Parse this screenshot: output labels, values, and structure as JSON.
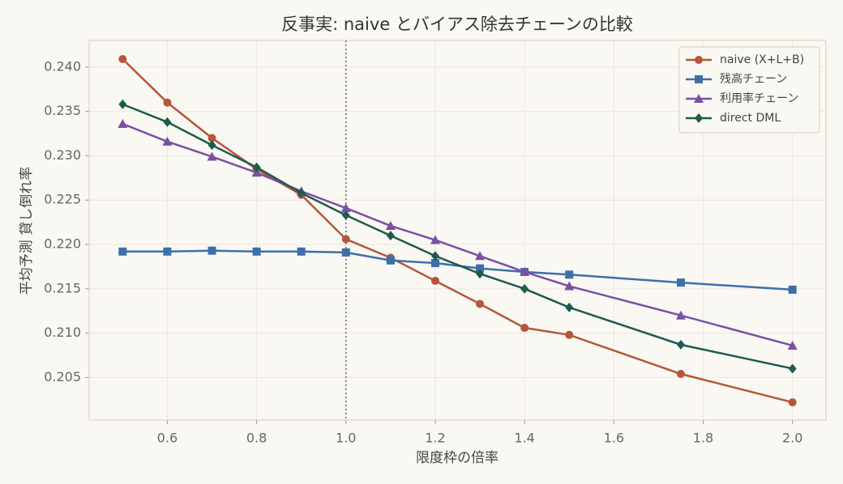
{
  "chart_data": {
    "type": "line",
    "title": "反事実: naive とバイアス除去チェーンの比較",
    "xlabel": "限度枠の倍率",
    "ylabel": "平均予測 貸し倒れ率",
    "x": [
      0.5,
      0.6,
      0.7,
      0.8,
      0.9,
      1.0,
      1.1,
      1.2,
      1.3,
      1.4,
      1.5,
      1.75,
      2.0
    ],
    "series": [
      {
        "name": "naive (X+L+B)",
        "color": "#b5563a",
        "marker": "circle",
        "values": [
          0.2409,
          0.236,
          0.232,
          0.2285,
          0.2256,
          0.2206,
          0.2185,
          0.2159,
          0.2133,
          0.2106,
          0.2098,
          0.2054,
          0.2022
        ]
      },
      {
        "name": "残高チェーン",
        "color": "#3d6fa8",
        "marker": "square",
        "values": [
          0.2192,
          0.2192,
          0.2193,
          0.2192,
          0.2192,
          0.2191,
          0.2182,
          0.2179,
          0.2173,
          0.2169,
          0.2166,
          0.2157,
          0.2149
        ]
      },
      {
        "name": "利用率チェーン",
        "color": "#7b4fa3",
        "marker": "triangle",
        "values": [
          0.2336,
          0.2316,
          0.2299,
          0.2281,
          0.226,
          0.2241,
          0.2221,
          0.2205,
          0.2187,
          0.2169,
          0.2153,
          0.212,
          0.2086
        ]
      },
      {
        "name": "direct DML",
        "color": "#1f5a4f",
        "marker": "diamond",
        "values": [
          0.2358,
          0.2338,
          0.2312,
          0.2287,
          0.2258,
          0.2233,
          0.221,
          0.2187,
          0.2167,
          0.215,
          0.2129,
          0.2087,
          0.206
        ]
      }
    ],
    "vline": 1.0,
    "xlim": [
      0.425,
      2.075
    ],
    "ylim": [
      0.2002,
      0.243
    ],
    "xticks": [
      0.6,
      0.8,
      {
        "value": 1.0,
        "label": "1.0"
      },
      1.2,
      1.4,
      1.6,
      1.8,
      {
        "value": 2.0,
        "label": "2.0"
      }
    ],
    "yticks": [
      0.205,
      {
        "value": 0.21,
        "label": "0.210"
      },
      0.215,
      {
        "value": 0.22,
        "label": "0.220"
      },
      0.225,
      {
        "value": 0.23,
        "label": "0.230"
      },
      0.235,
      {
        "value": 0.24,
        "label": "0.240"
      }
    ],
    "grid": true,
    "legend": "upper-right"
  }
}
